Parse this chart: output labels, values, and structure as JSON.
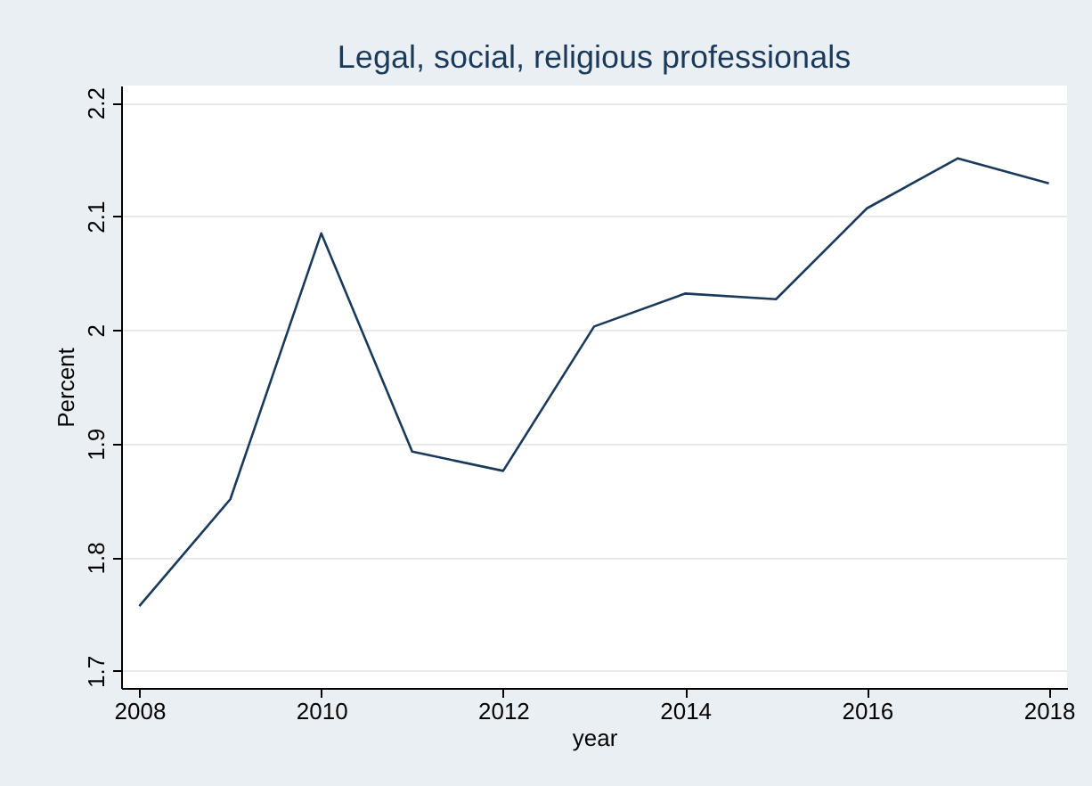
{
  "chart_data": {
    "type": "line",
    "title": "Legal, social, religious professionals",
    "xlabel": "year",
    "ylabel": "Percent",
    "x": [
      2008,
      2009,
      2010,
      2011,
      2012,
      2013,
      2014,
      2015,
      2016,
      2017,
      2018
    ],
    "series": [
      {
        "color": "#1a3a5c",
        "values": [
          1.757,
          1.851,
          2.085,
          1.893,
          1.876,
          2.003,
          2.032,
          2.027,
          2.107,
          2.151,
          2.129
        ]
      }
    ],
    "xlim": [
      2007.8,
      2018.2
    ],
    "xticks": [
      2008,
      2010,
      2012,
      2014,
      2016,
      2018
    ],
    "ylim": [
      1.685,
      2.215
    ],
    "yticks": [
      1.7,
      1.8,
      1.9,
      2,
      2.1,
      2.2
    ],
    "grid": "y",
    "marker": "none",
    "line_style": "solid"
  }
}
